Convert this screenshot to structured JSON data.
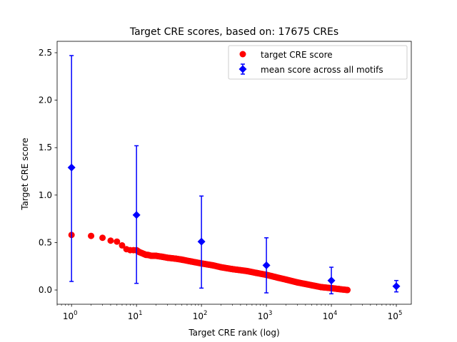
{
  "chart_data": {
    "type": "scatter",
    "title": "Target CRE scores, based on: 17675 CREs",
    "xlabel": "Target CRE rank (log)",
    "ylabel": "Target CRE score",
    "x_scale": "log",
    "xlim": [
      0.6,
      170000
    ],
    "ylim": [
      -0.15,
      2.62
    ],
    "grid": false,
    "legend_position": "top-right",
    "x_ticks": [
      {
        "value": 1,
        "base": "10",
        "exp": "0"
      },
      {
        "value": 10,
        "base": "10",
        "exp": "1"
      },
      {
        "value": 100,
        "base": "10",
        "exp": "2"
      },
      {
        "value": 1000,
        "base": "10",
        "exp": "3"
      },
      {
        "value": 10000,
        "base": "10",
        "exp": "4"
      },
      {
        "value": 100000,
        "base": "10",
        "exp": "5"
      }
    ],
    "y_ticks": [
      {
        "value": 0.0,
        "label": "0.0"
      },
      {
        "value": 0.5,
        "label": "0.5"
      },
      {
        "value": 1.0,
        "label": "1.0"
      },
      {
        "value": 1.5,
        "label": "1.5"
      },
      {
        "value": 2.0,
        "label": "2.0"
      },
      {
        "value": 2.5,
        "label": "2.5"
      }
    ],
    "series": [
      {
        "name": "target CRE score",
        "color": "#ff0000",
        "marker": "circle",
        "total_points": 17675,
        "x": [
          1,
          2,
          3,
          4,
          5,
          6,
          7,
          8,
          9,
          10,
          11,
          12,
          13,
          14,
          15,
          17,
          20,
          25,
          30,
          40,
          50,
          70,
          100,
          150,
          200,
          300,
          500,
          700,
          1000,
          1500,
          2000,
          3000,
          5000,
          7000,
          10000,
          13000,
          17675
        ],
        "y": [
          0.58,
          0.57,
          0.55,
          0.52,
          0.51,
          0.47,
          0.43,
          0.42,
          0.42,
          0.42,
          0.4,
          0.39,
          0.38,
          0.37,
          0.37,
          0.36,
          0.36,
          0.35,
          0.34,
          0.33,
          0.32,
          0.3,
          0.28,
          0.26,
          0.24,
          0.22,
          0.2,
          0.18,
          0.16,
          0.13,
          0.11,
          0.08,
          0.05,
          0.03,
          0.02,
          0.01,
          0.0
        ]
      },
      {
        "name": "mean score across all motifs",
        "color": "#0000ff",
        "marker": "diamond",
        "x": [
          1,
          10,
          100,
          1000,
          10000,
          100000
        ],
        "y": [
          1.29,
          0.79,
          0.51,
          0.26,
          0.1,
          0.04
        ],
        "err_low": [
          0.09,
          0.07,
          0.02,
          -0.03,
          -0.04,
          -0.02
        ],
        "err_high": [
          2.47,
          1.52,
          0.99,
          0.55,
          0.24,
          0.1
        ]
      }
    ]
  }
}
